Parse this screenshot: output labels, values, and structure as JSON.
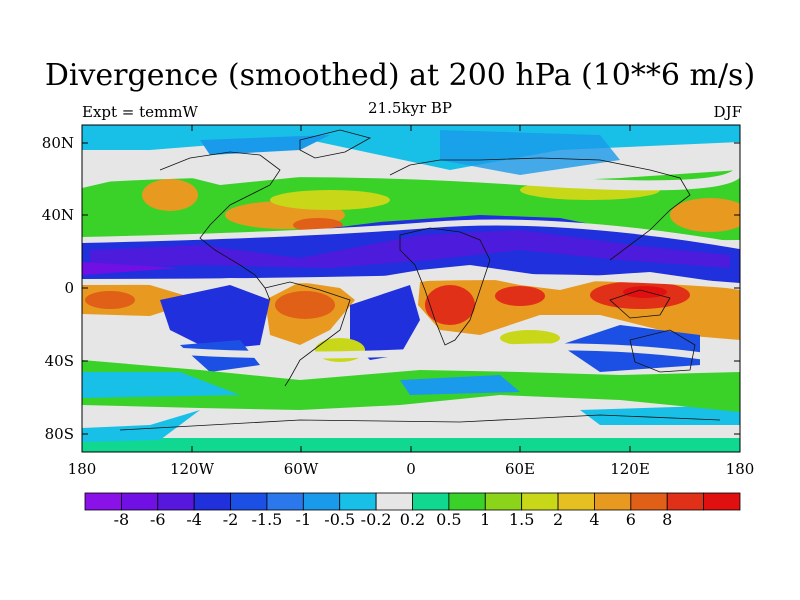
{
  "title": "Divergence (smoothed) at 200 hPa (10**6 m/s)",
  "left_label": "Expt = temmW",
  "center_label": "21.5kyr BP",
  "right_label": "DJF",
  "y_ticks": [
    "80N",
    "40N",
    "0",
    "40S",
    "80S"
  ],
  "x_ticks": [
    "180",
    "120W",
    "60W",
    "0",
    "60E",
    "120E",
    "180"
  ],
  "colorbar": {
    "colors": [
      "#8a12e8",
      "#7010e4",
      "#5518dc",
      "#2030dc",
      "#1c50e4",
      "#2a78ec",
      "#1a9aea",
      "#18c0e8",
      "#e6e6e6",
      "#10d890",
      "#3ad228",
      "#8cd41a",
      "#c8d818",
      "#e6c020",
      "#e89a20",
      "#e06018",
      "#e03018",
      "#e01010"
    ],
    "labels": [
      "-8",
      "-6",
      "-4",
      "-2",
      "-1.5",
      "-1",
      "-0.5",
      "-0.2",
      "0.2",
      "0.5",
      "1",
      "1.5",
      "2",
      "4",
      "6",
      "8"
    ]
  },
  "map_data": {
    "lon_range": [
      -180,
      180
    ],
    "lat_range": [
      -90,
      90
    ],
    "field": "200 hPa divergence (smoothed)",
    "units": "10**6 m/s",
    "season": "DJF",
    "period": "21.5kyr BP"
  }
}
